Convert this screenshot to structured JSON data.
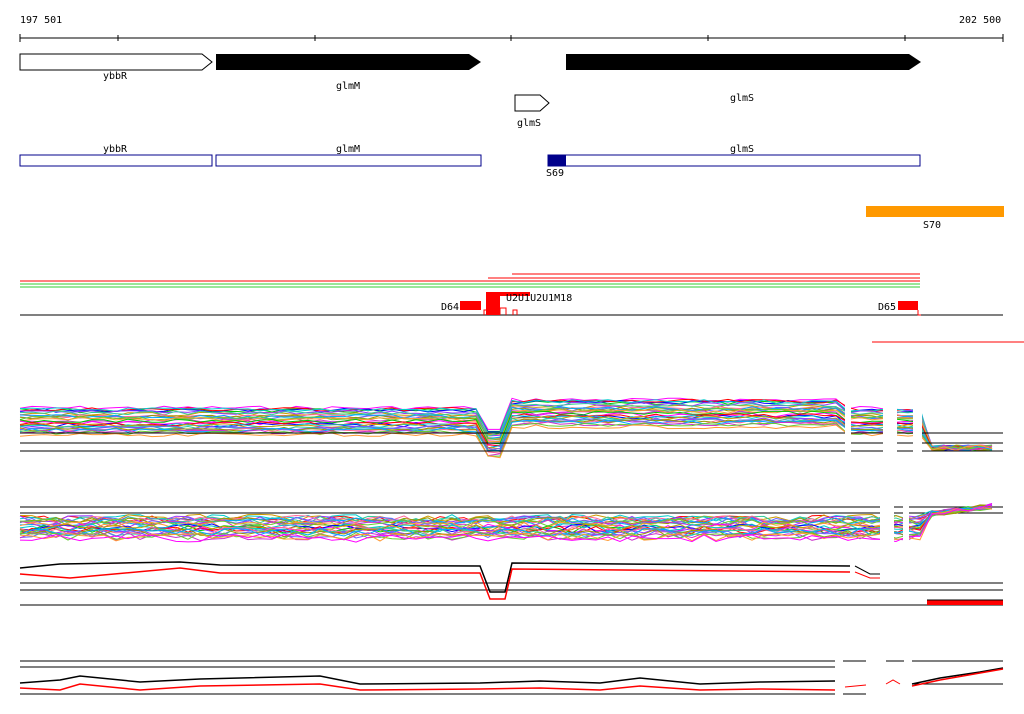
{
  "ruler": {
    "start_label": "197 501",
    "end_label": "202 500"
  },
  "genes": [
    {
      "name": "ybbR",
      "strand": "+",
      "fill": "#ffffff"
    },
    {
      "name": "glmM",
      "strand": "+",
      "fill": "#000000"
    },
    {
      "name": "glmS",
      "strand": "+",
      "fill": "#000000"
    },
    {
      "name": "glmS",
      "strand": "+",
      "fill": "#ffffff"
    }
  ],
  "cds_boxes": [
    {
      "name": "ybbR"
    },
    {
      "name": "glmM"
    },
    {
      "name": "glmS"
    }
  ],
  "promoters": [
    {
      "name": "S69",
      "color": "#00008b"
    }
  ],
  "terminators": [
    {
      "name": "S70",
      "color": "#ff9900"
    }
  ],
  "domains": [
    {
      "name": "D64",
      "color": "#ff0000"
    },
    {
      "name": "D65",
      "color": "#ff0000"
    }
  ],
  "overlap_labels": {
    "text": "U2U1U2U1M18"
  },
  "colors": {
    "feature_outline": "#00008b",
    "track_red": "#ff0000",
    "track_green": "#33cc33",
    "axis": "#000000"
  }
}
